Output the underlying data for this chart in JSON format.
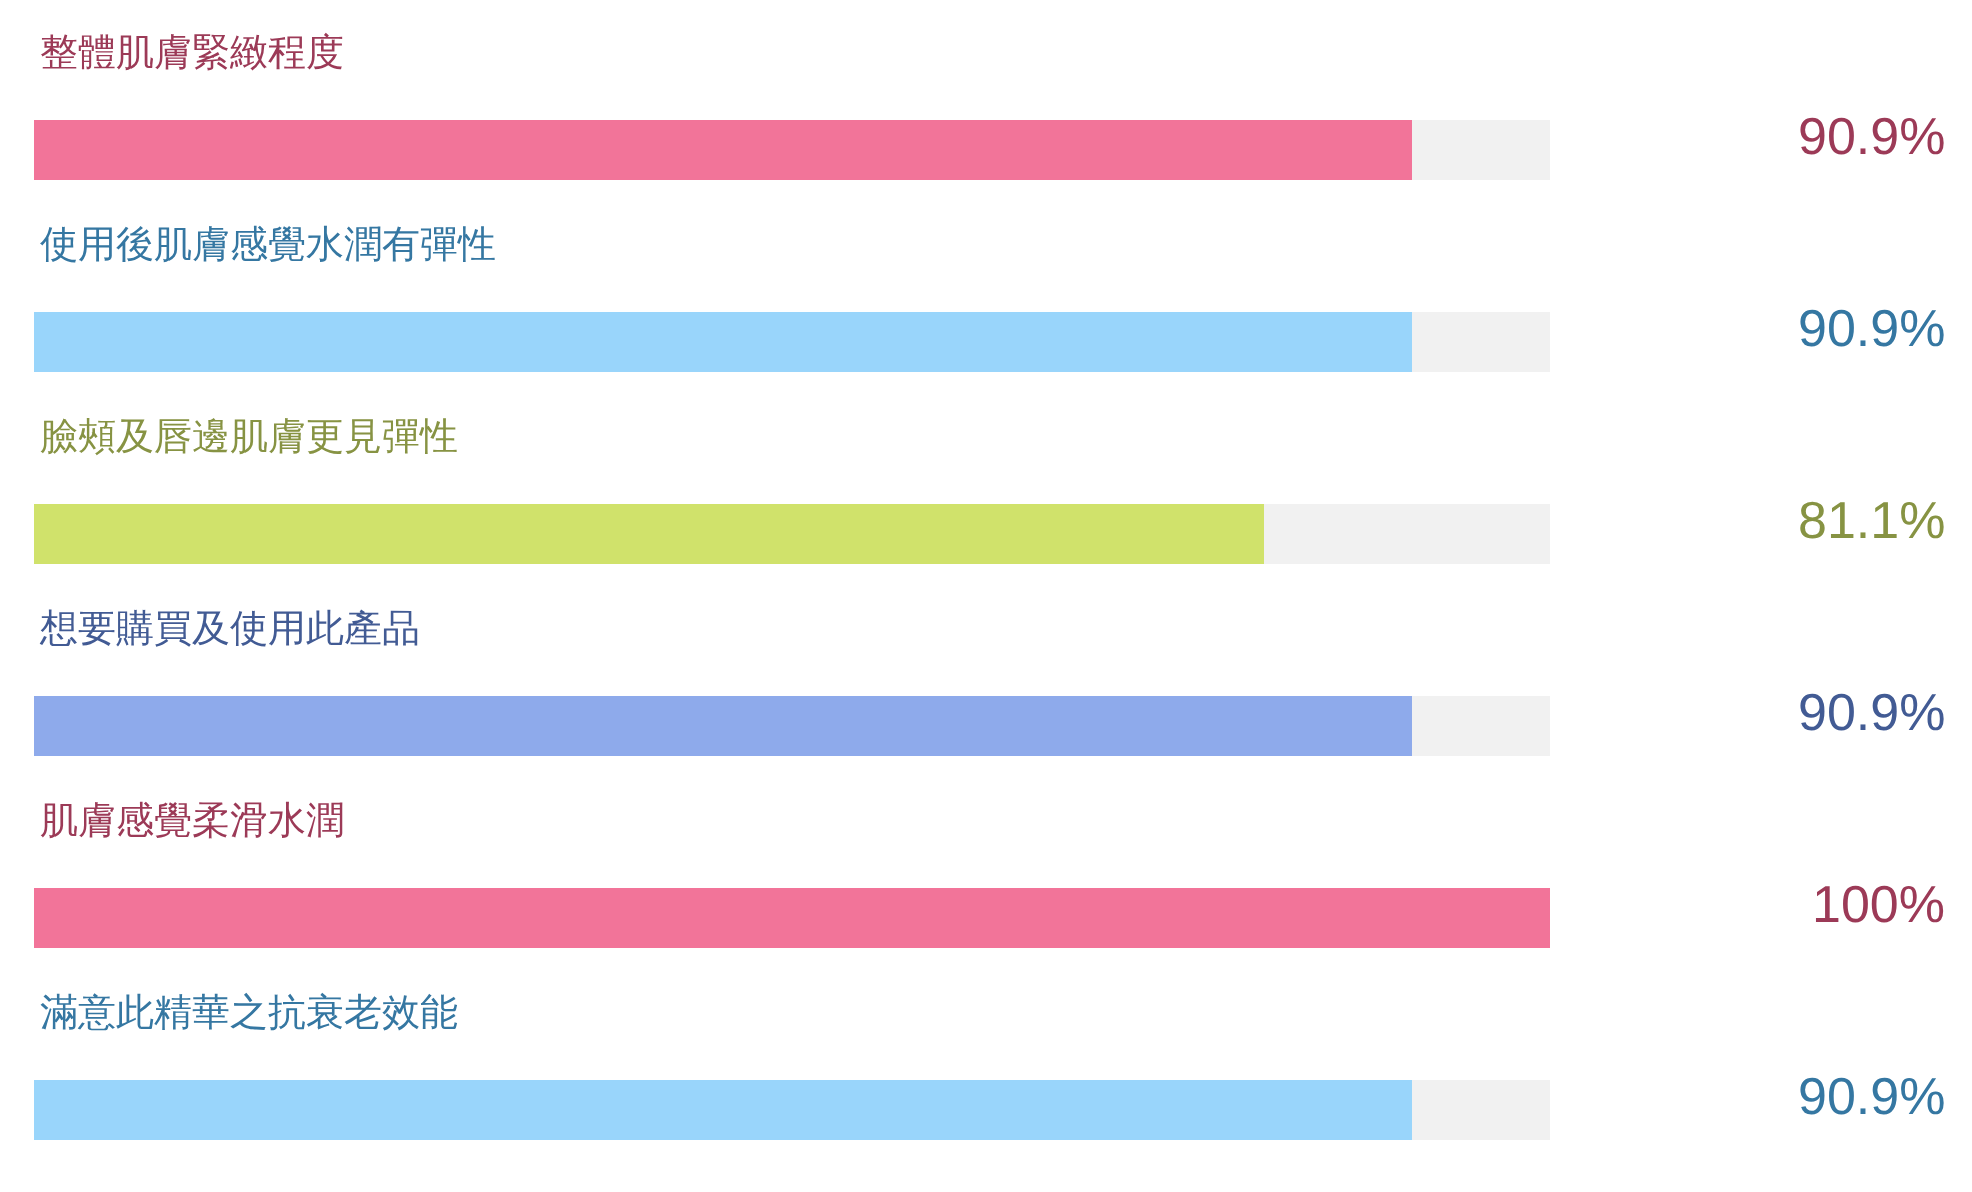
{
  "chart_data": {
    "type": "bar",
    "orientation": "horizontal",
    "categories": [
      "整體肌膚緊緻程度",
      "使用後肌膚感覺水潤有彈性",
      "臉頰及唇邊肌膚更見彈性",
      "想要購買及使用此產品",
      "肌膚感覺柔滑水潤",
      "滿意此精華之抗衰老效能"
    ],
    "values": [
      90.9,
      90.9,
      81.1,
      90.9,
      100,
      90.9
    ],
    "colors": [
      "#f27499",
      "#99d5fb",
      "#d0e26b",
      "#8eaaeb",
      "#f27499",
      "#99d5fb"
    ],
    "value_labels": [
      "90.9%",
      "90.9%",
      "81.1%",
      "90.9%",
      "100%",
      "90.9%"
    ],
    "xlim": [
      0,
      100
    ],
    "tick_labels": "y"
  }
}
